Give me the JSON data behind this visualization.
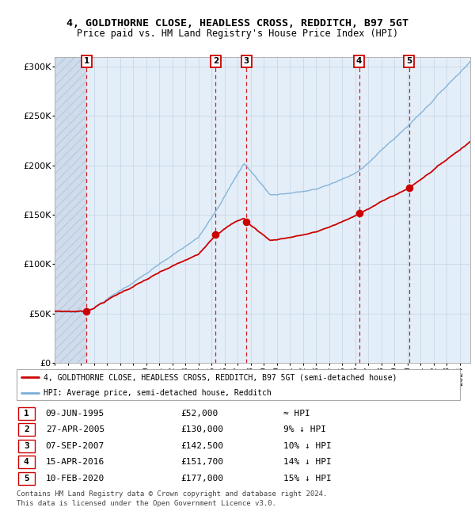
{
  "title_line1": "4, GOLDTHORNE CLOSE, HEADLESS CROSS, REDDITCH, B97 5GT",
  "title_line2": "Price paid vs. HM Land Registry's House Price Index (HPI)",
  "sale_dates_x": [
    1995.44,
    2005.32,
    2007.68,
    2016.29,
    2020.11
  ],
  "sale_prices_y": [
    52000,
    130000,
    142500,
    151700,
    177000
  ],
  "sale_labels": [
    "1",
    "2",
    "3",
    "4",
    "5"
  ],
  "red_line_color": "#cc0000",
  "blue_line_color": "#7aaed6",
  "hatch_fill_color": "#dce6f1",
  "hatch_color": "#b0c4d8",
  "grid_color": "#c8d8e8",
  "background_plot": "#e4eef8",
  "legend_label_red": "4, GOLDTHORNE CLOSE, HEADLESS CROSS, REDDITCH, B97 5GT (semi-detached house)",
  "legend_label_blue": "HPI: Average price, semi-detached house, Redditch",
  "table_entries": [
    {
      "num": "1",
      "date": "09-JUN-1995",
      "price": "£52,000",
      "vs": "≈ HPI"
    },
    {
      "num": "2",
      "date": "27-APR-2005",
      "price": "£130,000",
      "vs": "9% ↓ HPI"
    },
    {
      "num": "3",
      "date": "07-SEP-2007",
      "price": "£142,500",
      "vs": "10% ↓ HPI"
    },
    {
      "num": "4",
      "date": "15-APR-2016",
      "price": "£151,700",
      "vs": "14% ↓ HPI"
    },
    {
      "num": "5",
      "date": "10-FEB-2020",
      "price": "£177,000",
      "vs": "15% ↓ HPI"
    }
  ],
  "footnote_line1": "Contains HM Land Registry data © Crown copyright and database right 2024.",
  "footnote_line2": "This data is licensed under the Open Government Licence v3.0.",
  "xlim": [
    1993,
    2024.8
  ],
  "ylim": [
    0,
    310000
  ],
  "yticks": [
    0,
    50000,
    100000,
    150000,
    200000,
    250000,
    300000
  ],
  "ytick_labels": [
    "£0",
    "£50K",
    "£100K",
    "£150K",
    "£200K",
    "£250K",
    "£300K"
  ]
}
